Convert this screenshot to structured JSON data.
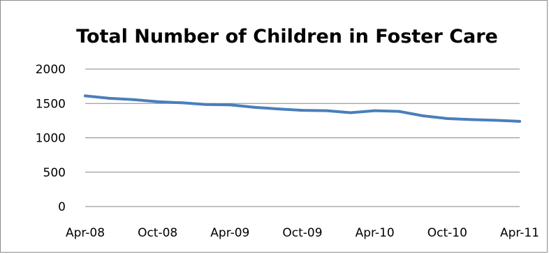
{
  "chart_data": {
    "type": "line",
    "title": "Total Number of Children in Foster Care",
    "xlabel": "",
    "ylabel": "",
    "ylim": [
      0,
      2000
    ],
    "y_ticks": [
      0,
      500,
      1000,
      1500,
      2000
    ],
    "y_tick_labels": [
      "0",
      "500",
      "1000",
      "1500",
      "2000"
    ],
    "x_tick_labels": [
      "Apr-08",
      "Oct-08",
      "Apr-09",
      "Oct-09",
      "Apr-10",
      "Oct-10",
      "Apr-11"
    ],
    "x": [
      "Apr-08",
      "Jun-08",
      "Aug-08",
      "Oct-08",
      "Dec-08",
      "Feb-09",
      "Apr-09",
      "Jun-09",
      "Aug-09",
      "Oct-09",
      "Dec-09",
      "Feb-10",
      "Apr-10",
      "Jun-10",
      "Aug-10",
      "Oct-10",
      "Dec-10",
      "Feb-11",
      "Apr-11"
    ],
    "grid": true,
    "legend": "none",
    "series_color": "#4a7ebb",
    "series": [
      {
        "values": [
          1610,
          1575,
          1555,
          1525,
          1510,
          1485,
          1480,
          1445,
          1420,
          1400,
          1395,
          1365,
          1395,
          1385,
          1320,
          1280,
          1265,
          1255,
          1240
        ]
      }
    ]
  }
}
